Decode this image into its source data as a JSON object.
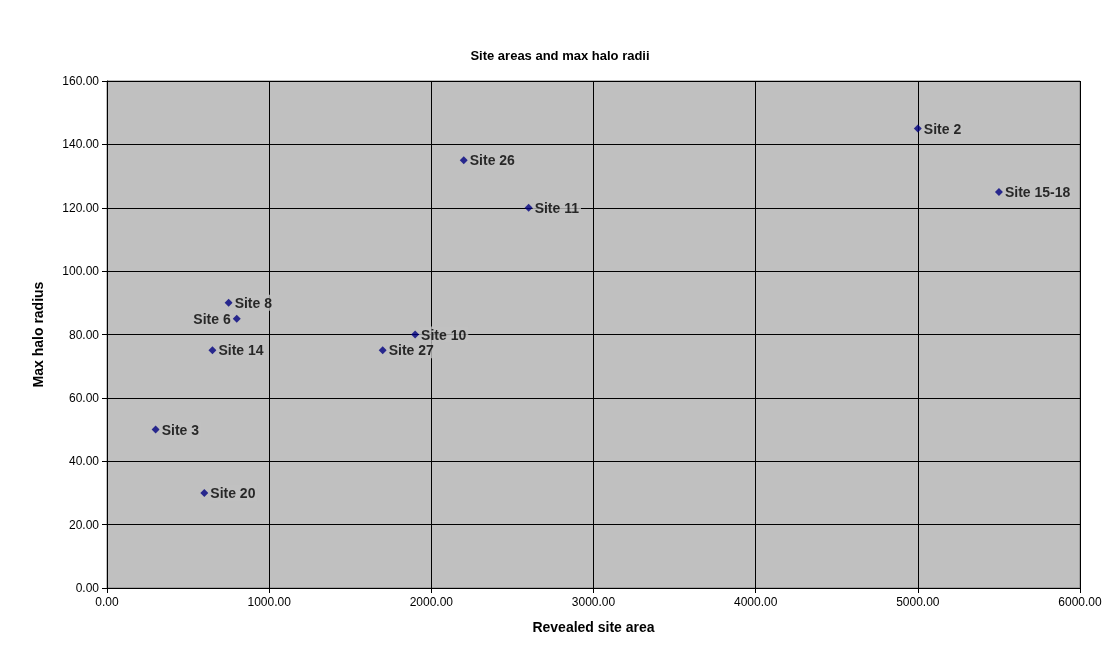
{
  "chart_data": {
    "type": "scatter",
    "title": "Site areas and max halo radii",
    "xlabel": "Revealed site area",
    "ylabel": "Max halo radius",
    "x": [
      5000,
      5500,
      2200,
      2600,
      750,
      800,
      1900,
      650,
      1700,
      300,
      600
    ],
    "series": [
      {
        "color": "#000080",
        "values": [
          145,
          125,
          135,
          120,
          90,
          85,
          80,
          75,
          75,
          50,
          30
        ]
      }
    ],
    "annotations": [
      {
        "text": "Site 2",
        "x": 5000,
        "y": 145
      },
      {
        "text": "Site 15-18",
        "x": 5500,
        "y": 125
      },
      {
        "text": "Site 26",
        "x": 2200,
        "y": 135
      },
      {
        "text": "Site 11",
        "x": 2600,
        "y": 120
      },
      {
        "text": "Site 8",
        "x": 750,
        "y": 90
      },
      {
        "text": "Site 6",
        "x": 800,
        "y": 85
      },
      {
        "text": "Site 10",
        "x": 1900,
        "y": 80
      },
      {
        "text": "Site 14",
        "x": 650,
        "y": 75
      },
      {
        "text": "Site 27",
        "x": 1700,
        "y": 75
      },
      {
        "text": "Site 3",
        "x": 300,
        "y": 50
      },
      {
        "text": "Site 20",
        "x": 600,
        "y": 30
      }
    ],
    "xlim": [
      0,
      6000
    ],
    "xticks": [
      {
        "value": 0,
        "label": "0.00"
      },
      {
        "value": 1000,
        "label": "1000.00"
      },
      {
        "value": 2000,
        "label": "2000.00"
      },
      {
        "value": 3000,
        "label": "3000.00"
      },
      {
        "value": 4000,
        "label": "4000.00"
      },
      {
        "value": 5000,
        "label": "5000.00"
      },
      {
        "value": 6000,
        "label": "6000.00"
      }
    ],
    "ylim": [
      0,
      160
    ],
    "yticks": [
      {
        "value": 0,
        "label": "0.00"
      },
      {
        "value": 20,
        "label": "20.00"
      },
      {
        "value": 40,
        "label": "40.00"
      },
      {
        "value": 60,
        "label": "60.00"
      },
      {
        "value": 80,
        "label": "80.00"
      },
      {
        "value": 100,
        "label": "100.00"
      },
      {
        "value": 120,
        "label": "120.00"
      },
      {
        "value": 140,
        "label": "140.00"
      },
      {
        "value": 160,
        "label": "160.00"
      }
    ],
    "grid": true,
    "marker": "diamond"
  }
}
